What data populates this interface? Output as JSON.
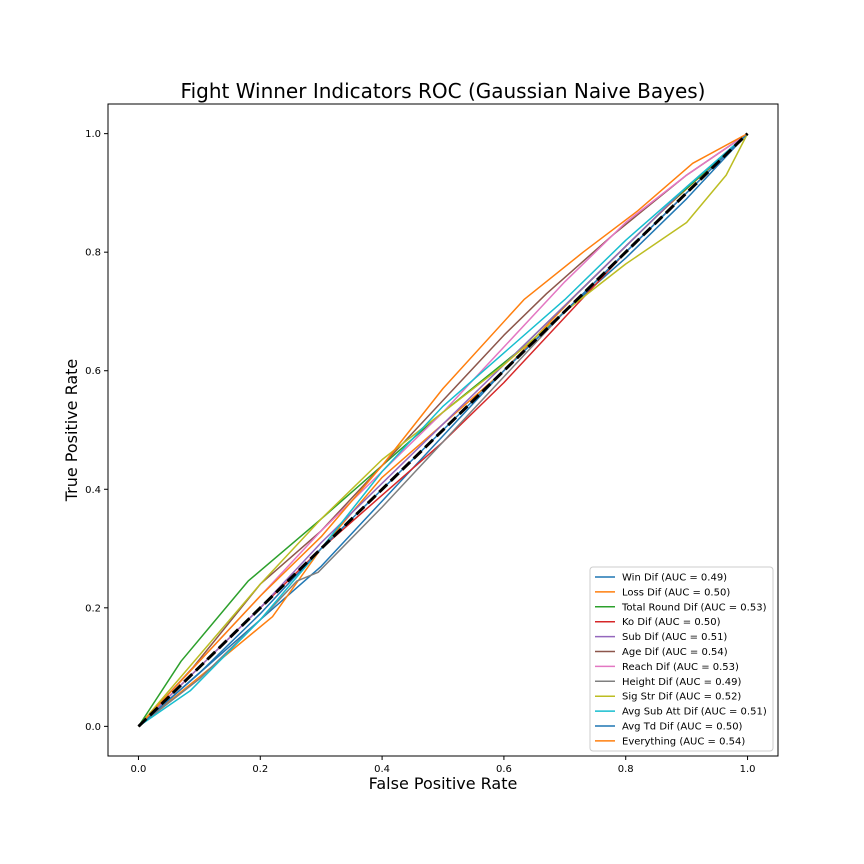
{
  "chart_data": {
    "type": "line",
    "title": "Fight Winner Indicators ROC (Gaussian Naive Bayes)",
    "xlabel": "False Positive Rate",
    "ylabel": "True Positive Rate",
    "xlim": [
      -0.05,
      1.05
    ],
    "ylim": [
      -0.05,
      1.05
    ],
    "xticks": [
      "0.0",
      "0.2",
      "0.4",
      "0.6",
      "0.8",
      "1.0"
    ],
    "yticks": [
      "0.0",
      "0.2",
      "0.4",
      "0.6",
      "0.8",
      "1.0"
    ],
    "grid": false,
    "legend_position": "lower-right",
    "series": [
      {
        "name": "Win Dif (AUC = 0.49)",
        "color": "#1f77b4",
        "points": [
          [
            0,
            0
          ],
          [
            0.1,
            0.09
          ],
          [
            0.2,
            0.18
          ],
          [
            0.3,
            0.27
          ],
          [
            0.4,
            0.38
          ],
          [
            0.5,
            0.49
          ],
          [
            0.6,
            0.6
          ],
          [
            0.7,
            0.7
          ],
          [
            0.8,
            0.79
          ],
          [
            0.9,
            0.89
          ],
          [
            1,
            1
          ]
        ]
      },
      {
        "name": "Loss Dif (AUC = 0.50)",
        "color": "#ff7f0e",
        "points": [
          [
            0,
            0
          ],
          [
            0.12,
            0.1
          ],
          [
            0.22,
            0.185
          ],
          [
            0.3,
            0.3
          ],
          [
            0.4,
            0.42
          ],
          [
            0.5,
            0.51
          ],
          [
            0.6,
            0.6
          ],
          [
            0.72,
            0.73
          ],
          [
            0.85,
            0.86
          ],
          [
            1,
            1
          ]
        ]
      },
      {
        "name": "Total Round Dif (AUC = 0.53)",
        "color": "#2ca02c",
        "points": [
          [
            0,
            0
          ],
          [
            0.07,
            0.11
          ],
          [
            0.18,
            0.245
          ],
          [
            0.3,
            0.35
          ],
          [
            0.4,
            0.44
          ],
          [
            0.5,
            0.53
          ],
          [
            0.62,
            0.63
          ],
          [
            0.75,
            0.76
          ],
          [
            0.87,
            0.88
          ],
          [
            1,
            1
          ]
        ]
      },
      {
        "name": "Ko Dif (AUC = 0.50)",
        "color": "#d62728",
        "points": [
          [
            0,
            0
          ],
          [
            0.1,
            0.1
          ],
          [
            0.2,
            0.2
          ],
          [
            0.3,
            0.3
          ],
          [
            0.4,
            0.39
          ],
          [
            0.5,
            0.48
          ],
          [
            0.6,
            0.58
          ],
          [
            0.7,
            0.69
          ],
          [
            0.8,
            0.8
          ],
          [
            0.9,
            0.9
          ],
          [
            1,
            1
          ]
        ]
      },
      {
        "name": "Sub Dif (AUC = 0.51)",
        "color": "#9467bd",
        "points": [
          [
            0,
            0
          ],
          [
            0.1,
            0.1
          ],
          [
            0.2,
            0.2
          ],
          [
            0.3,
            0.31
          ],
          [
            0.4,
            0.41
          ],
          [
            0.5,
            0.51
          ],
          [
            0.6,
            0.61
          ],
          [
            0.7,
            0.71
          ],
          [
            0.8,
            0.81
          ],
          [
            0.9,
            0.91
          ],
          [
            1,
            1
          ]
        ]
      },
      {
        "name": "Age Dif (AUC = 0.54)",
        "color": "#8c564b",
        "points": [
          [
            0,
            0
          ],
          [
            0.09,
            0.1
          ],
          [
            0.2,
            0.24
          ],
          [
            0.3,
            0.33
          ],
          [
            0.4,
            0.44
          ],
          [
            0.5,
            0.55
          ],
          [
            0.6,
            0.66
          ],
          [
            0.67,
            0.73
          ],
          [
            0.78,
            0.83
          ],
          [
            0.9,
            0.93
          ],
          [
            1,
            1
          ]
        ]
      },
      {
        "name": "Reach Dif (AUC = 0.53)",
        "color": "#e377c2",
        "points": [
          [
            0,
            0
          ],
          [
            0.1,
            0.11
          ],
          [
            0.2,
            0.22
          ],
          [
            0.3,
            0.33
          ],
          [
            0.4,
            0.43
          ],
          [
            0.5,
            0.53
          ],
          [
            0.6,
            0.64
          ],
          [
            0.7,
            0.75
          ],
          [
            0.8,
            0.85
          ],
          [
            0.9,
            0.93
          ],
          [
            1,
            1
          ]
        ]
      },
      {
        "name": "Height Dif (AUC = 0.49)",
        "color": "#7f7f7f",
        "points": [
          [
            0,
            0
          ],
          [
            0.1,
            0.08
          ],
          [
            0.2,
            0.18
          ],
          [
            0.26,
            0.245
          ],
          [
            0.295,
            0.26
          ],
          [
            0.4,
            0.37
          ],
          [
            0.5,
            0.48
          ],
          [
            0.6,
            0.59
          ],
          [
            0.7,
            0.7
          ],
          [
            0.8,
            0.8
          ],
          [
            0.9,
            0.9
          ],
          [
            1,
            1
          ]
        ]
      },
      {
        "name": "Sig Str Dif (AUC = 0.52)",
        "color": "#bcbd22",
        "points": [
          [
            0,
            0
          ],
          [
            0.1,
            0.12
          ],
          [
            0.2,
            0.24
          ],
          [
            0.3,
            0.35
          ],
          [
            0.4,
            0.45
          ],
          [
            0.5,
            0.53
          ],
          [
            0.6,
            0.61
          ],
          [
            0.7,
            0.7
          ],
          [
            0.8,
            0.78
          ],
          [
            0.9,
            0.85
          ],
          [
            0.965,
            0.93
          ],
          [
            1,
            1
          ]
        ]
      },
      {
        "name": "Avg Sub Att Dif (AUC = 0.51)",
        "color": "#17becf",
        "points": [
          [
            0,
            0
          ],
          [
            0.085,
            0.06
          ],
          [
            0.2,
            0.18
          ],
          [
            0.3,
            0.3
          ],
          [
            0.4,
            0.43
          ],
          [
            0.5,
            0.54
          ],
          [
            0.6,
            0.63
          ],
          [
            0.7,
            0.72
          ],
          [
            0.8,
            0.82
          ],
          [
            0.9,
            0.91
          ],
          [
            1,
            1
          ]
        ]
      },
      {
        "name": "Avg Td Dif (AUC = 0.50)",
        "color": "#1f77b4",
        "points": [
          [
            0,
            0
          ],
          [
            0.1,
            0.09
          ],
          [
            0.2,
            0.19
          ],
          [
            0.3,
            0.3
          ],
          [
            0.4,
            0.4
          ],
          [
            0.5,
            0.5
          ],
          [
            0.6,
            0.6
          ],
          [
            0.7,
            0.7
          ],
          [
            0.8,
            0.8
          ],
          [
            0.9,
            0.9
          ],
          [
            1,
            1
          ]
        ]
      },
      {
        "name": "Everything (AUC = 0.54)",
        "color": "#ff7f0e",
        "points": [
          [
            0,
            0
          ],
          [
            0.1,
            0.11
          ],
          [
            0.2,
            0.22
          ],
          [
            0.3,
            0.32
          ],
          [
            0.4,
            0.44
          ],
          [
            0.5,
            0.57
          ],
          [
            0.633,
            0.72
          ],
          [
            0.73,
            0.8
          ],
          [
            0.82,
            0.87
          ],
          [
            0.91,
            0.95
          ],
          [
            1,
            1
          ]
        ]
      }
    ],
    "reference_line": {
      "points": [
        [
          0,
          0
        ],
        [
          1,
          1
        ]
      ],
      "color": "#000000",
      "style": "dashed"
    }
  }
}
